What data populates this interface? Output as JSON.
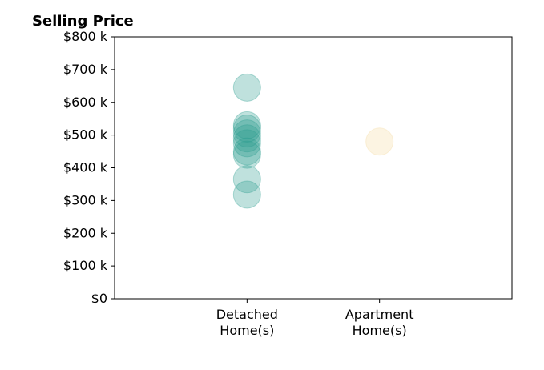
{
  "chart_data": {
    "type": "scatter",
    "title": "Selling Price",
    "xlabel": "",
    "ylabel": "",
    "categories": [
      "Detached\nHome(s)",
      "Apartment\nHome(s)"
    ],
    "ylim": [
      0,
      800000
    ],
    "yticks": [
      0,
      100000,
      200000,
      300000,
      400000,
      500000,
      600000,
      700000,
      800000
    ],
    "ytick_labels": [
      "$0",
      "$100 k",
      "$200 k",
      "$300 k",
      "$400 k",
      "$500 k",
      "$600 k",
      "$700 k",
      "$800 k"
    ],
    "grid": false,
    "series": [
      {
        "category": "Detached\nHome(s)",
        "color": "#2a9d8f",
        "values": [
          645000,
          530000,
          520000,
          505000,
          490000,
          475000,
          450000,
          440000,
          365000,
          318000
        ]
      },
      {
        "category": "Apartment\nHome(s)",
        "color": "#f4d9a0",
        "values": [
          480000
        ]
      }
    ]
  }
}
